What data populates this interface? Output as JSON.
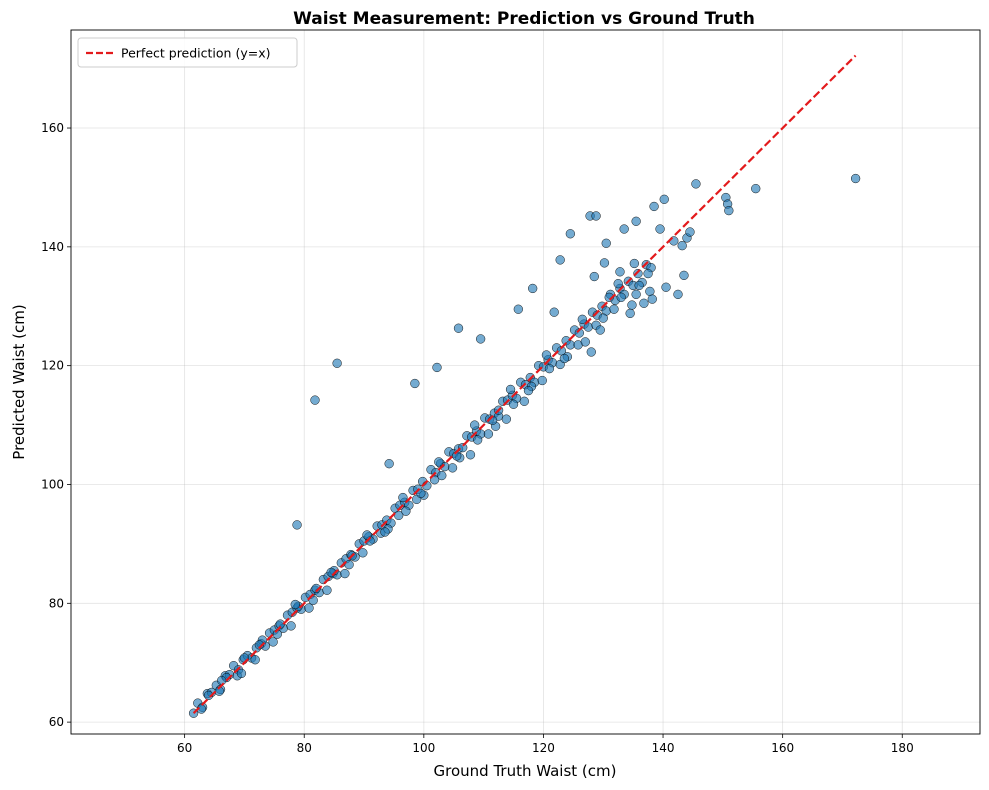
{
  "chart_data": {
    "type": "scatter",
    "title": "Waist Measurement: Prediction vs Ground Truth",
    "xlabel": "Ground Truth Waist (cm)",
    "ylabel": "Predicted Waist (cm)",
    "xlim": [
      41,
      193
    ],
    "ylim": [
      58,
      176.5
    ],
    "xticks": [
      60,
      80,
      100,
      120,
      140,
      160,
      180
    ],
    "yticks": [
      60,
      80,
      100,
      120,
      140,
      160
    ],
    "grid": true,
    "legend_position": "top-left",
    "reference_line": {
      "name": "Perfect prediction (y=x)",
      "color": "#e31a1c",
      "style": "dashed",
      "x": [
        61.5,
        172.2
      ],
      "y": [
        61.5,
        172.2
      ]
    },
    "series": [
      {
        "name": "predictions",
        "color": "#1f77b4",
        "x": [
          61.5,
          62.2,
          63.0,
          63.8,
          64.5,
          65.3,
          66.0,
          66.8,
          67.5,
          68.2,
          69.0,
          69.8,
          70.5,
          71.2,
          72.0,
          72.8,
          73.5,
          74.2,
          75.0,
          75.8,
          76.5,
          77.2,
          78.0,
          78.8,
          79.5,
          80.2,
          81.0,
          81.8,
          82.5,
          83.2,
          84.0,
          84.8,
          85.5,
          86.2,
          87.0,
          87.8,
          88.5,
          89.2,
          90.0,
          90.8,
          91.5,
          92.2,
          93.0,
          93.8,
          94.5,
          95.2,
          96.0,
          96.8,
          97.5,
          98.2,
          99.0,
          99.8,
          100.5,
          101.2,
          102.0,
          102.8,
          103.5,
          104.2,
          105.0,
          105.8,
          106.5,
          107.2,
          108.0,
          108.8,
          109.5,
          110.2,
          111.0,
          111.8,
          112.5,
          113.2,
          114.0,
          114.8,
          115.5,
          116.2,
          117.0,
          117.8,
          118.5,
          119.2,
          120.0,
          120.8,
          121.5,
          122.2,
          123.0,
          123.8,
          124.5,
          125.2,
          126.0,
          126.8,
          127.5,
          128.2,
          129.0,
          129.8,
          130.5,
          131.2,
          132.0,
          132.8,
          133.5,
          134.2,
          135.0,
          135.8,
          136.5,
          137.2,
          138.0,
          62.8,
          64.0,
          65.8,
          67.0,
          68.8,
          70.0,
          71.8,
          73.0,
          74.8,
          76.0,
          77.8,
          79.0,
          80.8,
          82.0,
          83.8,
          85.0,
          86.8,
          88.0,
          89.8,
          91.0,
          92.8,
          94.0,
          95.8,
          97.0,
          98.8,
          100.0,
          101.8,
          103.0,
          104.8,
          106.0,
          107.8,
          109.0,
          110.8,
          112.0,
          113.8,
          115.0,
          116.8,
          118.0,
          119.8,
          121.0,
          122.8,
          124.0,
          125.8,
          127.0,
          128.8,
          130.0,
          131.8,
          133.0,
          134.8,
          136.0,
          137.8,
          66.2,
          69.5,
          72.5,
          75.5,
          78.5,
          81.5,
          84.5,
          87.5,
          90.5,
          93.5,
          96.5,
          99.5,
          102.5,
          105.5,
          108.5,
          111.5,
          114.5,
          117.5,
          120.5,
          123.5,
          126.5,
          129.5,
          132.5,
          135.5,
          78.8,
          81.8,
          85.5,
          94.2,
          98.5,
          102.2,
          105.8,
          109.5,
          112.5,
          115.8,
          118.2,
          121.8,
          122.8,
          124.5,
          127.8,
          128.5,
          130.2,
          133.5,
          135.5,
          138.5,
          139.5,
          140.2,
          141.8,
          143.2,
          145.5,
          150.5,
          150.8,
          151.0,
          155.5,
          172.2,
          131.0,
          134.5,
          136.8,
          138.2,
          140.5,
          142.5,
          143.5,
          144.0,
          144.5,
          128.0,
          128.8,
          130.5,
          132.8,
          135.2,
          137.5
        ],
        "y": [
          61.5,
          63.2,
          62.5,
          64.8,
          65.0,
          66.2,
          65.5,
          67.8,
          68.0,
          69.5,
          68.8,
          70.5,
          71.2,
          70.8,
          72.5,
          73.2,
          72.8,
          75.0,
          75.5,
          76.2,
          75.8,
          78.0,
          78.5,
          79.2,
          79.0,
          81.0,
          81.5,
          82.2,
          81.8,
          84.0,
          84.5,
          85.0,
          84.8,
          86.8,
          87.5,
          88.2,
          87.8,
          90.0,
          90.5,
          91.2,
          90.8,
          93.0,
          93.2,
          94.0,
          93.5,
          96.0,
          96.5,
          97.0,
          96.5,
          99.0,
          99.2,
          100.5,
          99.8,
          102.5,
          102.0,
          103.5,
          103.0,
          105.5,
          105.2,
          106.0,
          106.2,
          108.2,
          108.0,
          109.0,
          108.5,
          111.2,
          111.0,
          112.0,
          111.5,
          114.0,
          114.2,
          115.0,
          114.5,
          117.2,
          116.8,
          118.0,
          117.2,
          120.0,
          119.8,
          121.0,
          120.5,
          123.0,
          122.5,
          124.2,
          123.5,
          126.0,
          125.5,
          127.0,
          126.5,
          129.0,
          128.5,
          130.0,
          129.2,
          132.0,
          131.0,
          133.0,
          132.0,
          134.2,
          133.5,
          135.5,
          134.0,
          137.0,
          136.5,
          62.2,
          64.5,
          65.2,
          67.5,
          67.8,
          70.8,
          70.5,
          73.8,
          73.5,
          76.5,
          76.2,
          79.5,
          79.2,
          82.5,
          82.2,
          85.5,
          85.0,
          88.0,
          88.5,
          90.5,
          91.8,
          92.5,
          94.8,
          95.5,
          97.5,
          98.2,
          100.8,
          101.5,
          102.8,
          104.5,
          105.0,
          107.5,
          108.5,
          109.8,
          111.0,
          113.5,
          114.0,
          116.5,
          117.5,
          119.5,
          120.2,
          121.5,
          123.5,
          124.0,
          126.8,
          128.0,
          129.5,
          131.5,
          130.2,
          133.5,
          132.5,
          67.0,
          68.2,
          73.0,
          74.8,
          79.8,
          80.5,
          85.2,
          86.5,
          91.5,
          92.0,
          97.8,
          98.5,
          103.8,
          104.8,
          110.0,
          110.8,
          116.0,
          115.8,
          121.8,
          121.2,
          127.8,
          126.0,
          133.8,
          132.0,
          93.2,
          114.2,
          120.4,
          103.5,
          117.0,
          119.7,
          126.3,
          124.5,
          112.5,
          129.5,
          133.0,
          129.0,
          137.8,
          142.2,
          145.2,
          135.0,
          137.3,
          143.0,
          144.3,
          146.8,
          143.0,
          148.0,
          141.0,
          140.2,
          150.6,
          148.3,
          147.2,
          146.1,
          149.8,
          151.5,
          131.5,
          128.8,
          130.5,
          131.2,
          133.2,
          132.0,
          135.2,
          141.5,
          142.5,
          122.3,
          145.2,
          140.6,
          135.8,
          137.2,
          135.5
        ]
      }
    ]
  }
}
